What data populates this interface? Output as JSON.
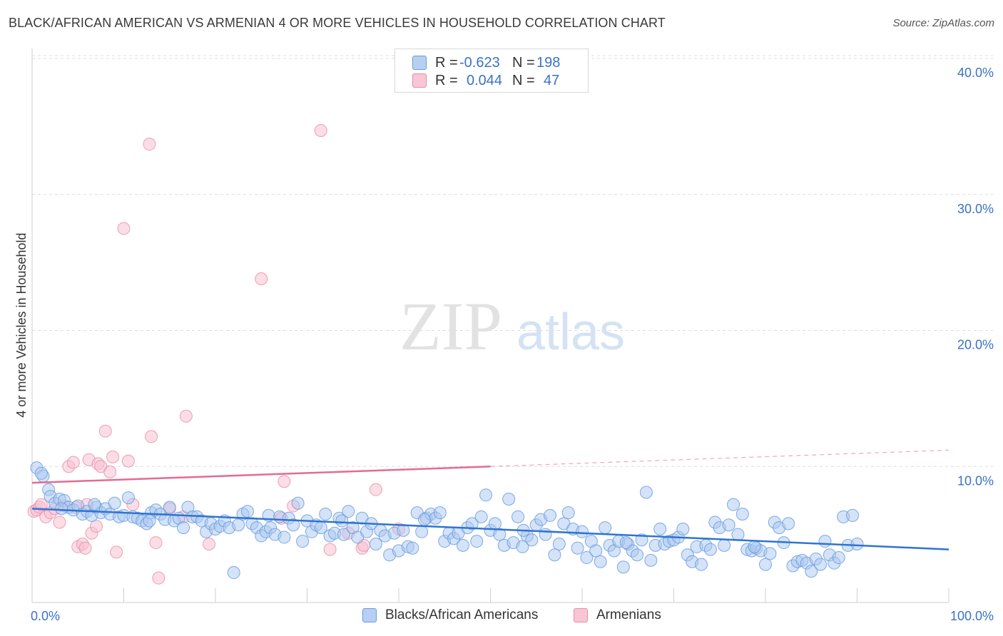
{
  "header": {
    "title": "BLACK/AFRICAN AMERICAN VS ARMENIAN 4 OR MORE VEHICLES IN HOUSEHOLD CORRELATION CHART",
    "source": "Source: ZipAtlas.com"
  },
  "watermark": {
    "zip": "ZIP",
    "atlas": "atlas"
  },
  "stats_legend": {
    "r_label": "R =",
    "n_label": "N =",
    "rows": [
      {
        "r": "-0.623",
        "n": "198",
        "fill": "#b7d0f1",
        "stroke": "#6a9be0"
      },
      {
        "r": "0.044",
        "n": "47",
        "fill": "#f9c6d6",
        "stroke": "#e88aa8"
      }
    ]
  },
  "colors": {
    "blue_fill": "#aac8ef",
    "blue_stroke": "#6a9be0",
    "blue_line": "#2f74d0",
    "pink_fill": "#f7c1d2",
    "pink_stroke": "#e88aa8",
    "pink_line": "#e36b93",
    "grid": "#dcdcdc",
    "axis_label": "#3a72c4"
  },
  "chart_data": {
    "type": "scatter",
    "title": "BLACK/AFRICAN AMERICAN VS ARMENIAN 4 OR MORE VEHICLES IN HOUSEHOLD CORRELATION CHART",
    "xlabel": "",
    "ylabel": "4 or more Vehicles in Household",
    "xlim": [
      0,
      100
    ],
    "ylim": [
      0,
      40
    ],
    "x_tick_labels": [
      "0.0%",
      "100.0%"
    ],
    "y_ticks": [
      10,
      20,
      30,
      40
    ],
    "y_tick_labels": [
      "10.0%",
      "20.0%",
      "30.0%",
      "40.0%"
    ],
    "grid": true,
    "legend_position": "bottom-center",
    "series": [
      {
        "name": "Blacks/African Americans",
        "color": "#6a9be0",
        "trend": {
          "x0": 0,
          "y0": 6.9,
          "x1": 100,
          "y1": 3.9
        },
        "points": [
          [
            0.5,
            9.9
          ],
          [
            1.2,
            9.3
          ],
          [
            1.8,
            8.3
          ],
          [
            2.0,
            7.8
          ],
          [
            2.5,
            7.3
          ],
          [
            3.0,
            7.6
          ],
          [
            3.5,
            7.5
          ],
          [
            4.0,
            7.0
          ],
          [
            4.5,
            6.8
          ],
          [
            5.0,
            7.1
          ],
          [
            5.5,
            6.5
          ],
          [
            6.0,
            6.7
          ],
          [
            6.5,
            6.4
          ],
          [
            7.0,
            7.0
          ],
          [
            7.5,
            6.6
          ],
          [
            8.0,
            6.9
          ],
          [
            8.5,
            6.5
          ],
          [
            9.0,
            7.3
          ],
          [
            9.5,
            6.3
          ],
          [
            10.0,
            6.4
          ],
          [
            10.5,
            7.7
          ],
          [
            11.0,
            6.3
          ],
          [
            11.5,
            6.2
          ],
          [
            12.0,
            6.0
          ],
          [
            12.5,
            5.8
          ],
          [
            13.0,
            6.6
          ],
          [
            13.5,
            6.8
          ],
          [
            14.0,
            6.5
          ],
          [
            14.5,
            6.1
          ],
          [
            15.0,
            7.0
          ],
          [
            15.5,
            6.0
          ],
          [
            16.0,
            6.2
          ],
          [
            16.5,
            5.5
          ],
          [
            17.0,
            7.0
          ],
          [
            17.5,
            6.3
          ],
          [
            18.0,
            6.3
          ],
          [
            18.5,
            6.0
          ],
          [
            19.0,
            5.2
          ],
          [
            19.5,
            5.8
          ],
          [
            20.0,
            5.4
          ],
          [
            20.5,
            5.6
          ],
          [
            21.0,
            6.0
          ],
          [
            21.5,
            5.5
          ],
          [
            22.0,
            2.2
          ],
          [
            22.5,
            5.7
          ],
          [
            23.0,
            6.5
          ],
          [
            23.5,
            6.7
          ],
          [
            24.0,
            5.8
          ],
          [
            24.5,
            5.5
          ],
          [
            25.0,
            4.9
          ],
          [
            25.5,
            5.2
          ],
          [
            26.0,
            5.5
          ],
          [
            26.5,
            5.0
          ],
          [
            27.0,
            6.3
          ],
          [
            27.5,
            4.8
          ],
          [
            28.0,
            6.2
          ],
          [
            28.5,
            5.7
          ],
          [
            29.0,
            7.3
          ],
          [
            29.5,
            4.5
          ],
          [
            30.0,
            6.0
          ],
          [
            30.5,
            5.2
          ],
          [
            31.0,
            5.7
          ],
          [
            31.5,
            5.5
          ],
          [
            32.0,
            6.5
          ],
          [
            32.5,
            4.9
          ],
          [
            33.0,
            5.1
          ],
          [
            33.5,
            6.2
          ],
          [
            34.0,
            5.0
          ],
          [
            34.5,
            6.7
          ],
          [
            35.0,
            5.5
          ],
          [
            35.5,
            4.8
          ],
          [
            36.0,
            6.2
          ],
          [
            36.5,
            5.2
          ],
          [
            37.0,
            5.8
          ],
          [
            37.5,
            4.3
          ],
          [
            38.0,
            5.3
          ],
          [
            38.5,
            4.9
          ],
          [
            39.0,
            3.5
          ],
          [
            39.5,
            5.1
          ],
          [
            40.0,
            3.8
          ],
          [
            40.5,
            5.3
          ],
          [
            41.0,
            4.1
          ],
          [
            41.5,
            4.0
          ],
          [
            42.0,
            6.6
          ],
          [
            42.5,
            5.2
          ],
          [
            43.0,
            6.2
          ],
          [
            43.5,
            6.5
          ],
          [
            44.0,
            6.2
          ],
          [
            44.5,
            6.6
          ],
          [
            45.0,
            4.5
          ],
          [
            45.5,
            5.1
          ],
          [
            46.0,
            4.7
          ],
          [
            46.5,
            5.1
          ],
          [
            47.0,
            4.2
          ],
          [
            47.5,
            5.5
          ],
          [
            48.0,
            5.8
          ],
          [
            48.5,
            4.5
          ],
          [
            49.0,
            6.3
          ],
          [
            49.5,
            7.9
          ],
          [
            50.0,
            5.3
          ],
          [
            50.5,
            5.8
          ],
          [
            51.0,
            5.0
          ],
          [
            51.5,
            4.2
          ],
          [
            52.0,
            7.6
          ],
          [
            52.5,
            4.4
          ],
          [
            53.0,
            6.3
          ],
          [
            53.5,
            4.1
          ],
          [
            54.0,
            4.9
          ],
          [
            54.5,
            4.6
          ],
          [
            55.0,
            5.7
          ],
          [
            55.5,
            6.1
          ],
          [
            56.0,
            5.0
          ],
          [
            56.5,
            6.4
          ],
          [
            57.0,
            3.5
          ],
          [
            57.5,
            4.3
          ],
          [
            58.0,
            5.8
          ],
          [
            58.5,
            6.6
          ],
          [
            59.0,
            5.4
          ],
          [
            59.5,
            4.0
          ],
          [
            60.0,
            5.2
          ],
          [
            60.5,
            3.3
          ],
          [
            61.0,
            4.5
          ],
          [
            61.5,
            3.8
          ],
          [
            62.0,
            3.0
          ],
          [
            62.5,
            5.5
          ],
          [
            63.0,
            4.2
          ],
          [
            63.5,
            3.8
          ],
          [
            64.0,
            4.5
          ],
          [
            64.5,
            2.6
          ],
          [
            65.0,
            4.3
          ],
          [
            65.5,
            3.8
          ],
          [
            66.0,
            3.5
          ],
          [
            66.5,
            4.6
          ],
          [
            67.0,
            8.1
          ],
          [
            67.5,
            3.1
          ],
          [
            68.0,
            4.2
          ],
          [
            68.5,
            5.4
          ],
          [
            69.0,
            4.3
          ],
          [
            69.5,
            4.5
          ],
          [
            70.0,
            4.6
          ],
          [
            70.5,
            4.8
          ],
          [
            71.0,
            5.4
          ],
          [
            71.5,
            3.5
          ],
          [
            72.0,
            3.0
          ],
          [
            72.5,
            4.1
          ],
          [
            73.0,
            2.8
          ],
          [
            73.5,
            4.2
          ],
          [
            74.0,
            3.9
          ],
          [
            74.5,
            5.9
          ],
          [
            75.0,
            5.5
          ],
          [
            75.5,
            4.2
          ],
          [
            76.0,
            5.7
          ],
          [
            76.5,
            7.2
          ],
          [
            77.0,
            5.0
          ],
          [
            77.5,
            6.5
          ],
          [
            78.0,
            3.9
          ],
          [
            78.5,
            3.8
          ],
          [
            79.0,
            4.0
          ],
          [
            79.5,
            3.8
          ],
          [
            80.0,
            2.8
          ],
          [
            80.5,
            3.6
          ],
          [
            81.0,
            5.9
          ],
          [
            81.5,
            5.5
          ],
          [
            82.0,
            4.4
          ],
          [
            82.5,
            5.8
          ],
          [
            83.0,
            2.7
          ],
          [
            83.5,
            3.0
          ],
          [
            84.0,
            3.1
          ],
          [
            84.5,
            2.9
          ],
          [
            85.0,
            2.3
          ],
          [
            85.5,
            3.2
          ],
          [
            86.0,
            2.8
          ],
          [
            86.5,
            4.5
          ],
          [
            87.0,
            3.5
          ],
          [
            87.5,
            2.9
          ],
          [
            88.0,
            3.3
          ],
          [
            88.5,
            6.3
          ],
          [
            89.0,
            4.2
          ],
          [
            89.5,
            6.4
          ],
          [
            90.0,
            4.3
          ],
          [
            1.0,
            9.5
          ],
          [
            3.2,
            6.9
          ],
          [
            6.8,
            7.2
          ],
          [
            12.8,
            6.0
          ],
          [
            25.8,
            6.4
          ],
          [
            33.8,
            6.0
          ],
          [
            42.8,
            6.1
          ],
          [
            53.6,
            5.3
          ],
          [
            64.8,
            4.4
          ],
          [
            78.8,
            4.1
          ]
        ]
      },
      {
        "name": "Armenians",
        "color": "#e88aa8",
        "trend": {
          "x0": 0,
          "y0": 8.8,
          "x1": 50,
          "y1": 10.0,
          "dash_x1": 100,
          "dash_y1": 11.2
        },
        "points": [
          [
            0.2,
            6.7
          ],
          [
            0.5,
            6.8
          ],
          [
            0.8,
            7.0
          ],
          [
            1.0,
            7.2
          ],
          [
            1.5,
            6.3
          ],
          [
            2.0,
            6.6
          ],
          [
            2.5,
            6.9
          ],
          [
            3.0,
            5.9
          ],
          [
            3.5,
            7.1
          ],
          [
            4.0,
            10.0
          ],
          [
            4.5,
            10.3
          ],
          [
            4.8,
            7.0
          ],
          [
            5.0,
            4.1
          ],
          [
            5.5,
            4.3
          ],
          [
            5.8,
            4.0
          ],
          [
            6.0,
            7.2
          ],
          [
            6.2,
            10.5
          ],
          [
            6.5,
            5.1
          ],
          [
            7.0,
            5.6
          ],
          [
            7.2,
            10.2
          ],
          [
            7.5,
            10.0
          ],
          [
            8.0,
            12.6
          ],
          [
            8.5,
            9.6
          ],
          [
            8.8,
            10.7
          ],
          [
            9.2,
            3.7
          ],
          [
            10.0,
            27.5
          ],
          [
            10.5,
            10.4
          ],
          [
            11.0,
            7.2
          ],
          [
            12.8,
            33.7
          ],
          [
            13.0,
            12.2
          ],
          [
            13.5,
            4.4
          ],
          [
            13.8,
            1.8
          ],
          [
            15.0,
            6.9
          ],
          [
            16.5,
            6.3
          ],
          [
            16.8,
            13.7
          ],
          [
            19.3,
            4.3
          ],
          [
            25.0,
            23.8
          ],
          [
            27.2,
            6.2
          ],
          [
            27.5,
            8.9
          ],
          [
            28.5,
            7.1
          ],
          [
            31.5,
            34.7
          ],
          [
            32.5,
            3.9
          ],
          [
            34.5,
            5.1
          ],
          [
            36.0,
            4.0
          ],
          [
            36.2,
            4.2
          ],
          [
            37.5,
            8.3
          ],
          [
            40.0,
            5.4
          ]
        ]
      }
    ]
  },
  "bottom_legend": [
    {
      "label": "Blacks/African Americans",
      "fill": "#b7d0f1",
      "stroke": "#6a9be0"
    },
    {
      "label": "Armenians",
      "fill": "#f9c6d6",
      "stroke": "#e88aa8"
    }
  ]
}
